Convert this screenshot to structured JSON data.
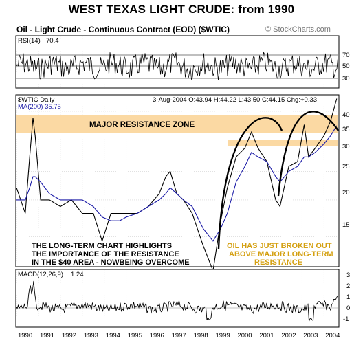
{
  "title": "WEST TEXAS LIGHT CRUDE: from 1990",
  "contract": "Oil - Light Crude - Continuous Contract (EOD) ($WTIC)",
  "watermark": "© StockCharts.com",
  "rsi": {
    "label": "RSI(14)",
    "value": "70.4",
    "ticks": [
      "70",
      "50",
      "30"
    ]
  },
  "price": {
    "symbol_label": "$WTIC Daily",
    "ma_label": "MA(200) 35.75",
    "quote": "3-Aug-2004  O:43.94  H:44.22  L:43.50  C:44.15  Chg:+0.33",
    "ticks": [
      "40",
      "35",
      "30",
      "25",
      "20",
      "15"
    ],
    "resistance_label": "MAJOR RESISTANCE ZONE",
    "note_left": [
      "THE LONG-TERM CHART HIGHLIGHTS",
      "THE IMPORTANCE OF THE RESISTANCE",
      "IN THE $40 AREA - NOWBEING OVERCOME"
    ],
    "note_right": [
      "OIL HAS JUST BROKEN OUT",
      "ABOVE MAJOR LONG-TERM",
      "RESISTANCE"
    ]
  },
  "macd": {
    "label": "MACD(12,26,9)",
    "value": "1.24",
    "ticks": [
      "3",
      "2",
      "1",
      "0",
      "-1"
    ]
  },
  "x_labels": [
    "1990",
    "1991",
    "1992",
    "1993",
    "1994",
    "1995",
    "1996",
    "1997",
    "1998",
    "1999",
    "2000",
    "2001",
    "2002",
    "2003",
    "2004"
  ],
  "colors": {
    "price_line": "#000000",
    "ma_line": "#1a1aa6",
    "resistance_band": "#fbd9a3",
    "support_band": "#fbd9a3",
    "arc": "#000000",
    "note_left": "#000000",
    "note_right": "#d4a011",
    "grid": "#cfcfcf"
  },
  "chart_data": {
    "type": "line",
    "title": "WEST TEXAS LIGHT CRUDE: from 1990",
    "xlabel": "",
    "ylabel": "",
    "ylim": [
      12,
      45
    ],
    "log_scale": true,
    "x": [
      1990.0,
      1990.4,
      1990.6,
      1990.75,
      1990.85,
      1991.1,
      1991.5,
      1992.0,
      1992.5,
      1993.0,
      1993.5,
      1993.9,
      1994.3,
      1994.7,
      1995.0,
      1995.5,
      1996.0,
      1996.5,
      1996.8,
      1997.0,
      1997.3,
      1997.6,
      1998.0,
      1998.5,
      1998.95,
      1999.3,
      1999.6,
      2000.0,
      2000.4,
      2000.7,
      2001.0,
      2001.4,
      2001.8,
      2002.0,
      2002.4,
      2002.8,
      2003.1,
      2003.3,
      2003.6,
      2004.0,
      2004.3,
      2004.58
    ],
    "series": [
      {
        "values": [
          22,
          18,
          28,
          38,
          33,
          20,
          20,
          19,
          20,
          18,
          18,
          14.5,
          18,
          18,
          18,
          18,
          19,
          21,
          24,
          25,
          21,
          20,
          18,
          14,
          11.5,
          17,
          22,
          28,
          30,
          34,
          30,
          27,
          20,
          19,
          26,
          27,
          36,
          28,
          30,
          33,
          37,
          44.15
        ]
      },
      {
        "values": [
          20,
          20,
          22,
          24,
          24,
          23,
          21,
          20,
          20,
          20,
          19,
          17.5,
          17,
          17,
          17.5,
          18,
          19,
          20,
          21,
          22,
          21,
          20,
          19,
          16,
          14.5,
          16,
          18,
          23,
          26,
          29,
          28,
          27,
          24,
          23,
          25,
          26,
          28,
          28,
          29,
          31,
          33,
          35.75
        ]
      }
    ]
  }
}
